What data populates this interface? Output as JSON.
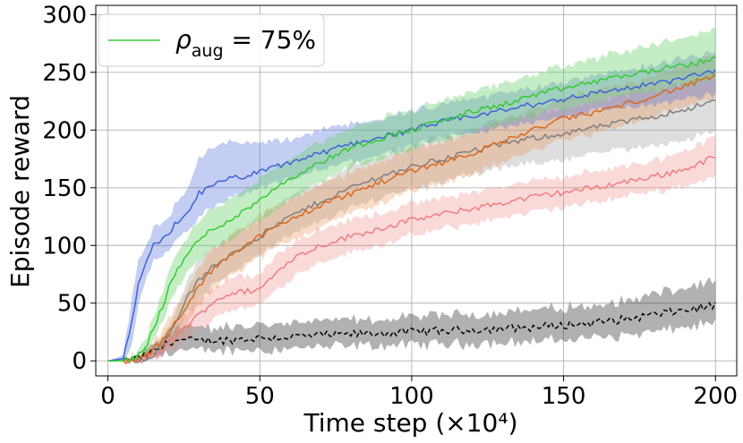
{
  "chart_data": {
    "type": "line",
    "title": "",
    "xlabel": "Time step (×10⁴)",
    "ylabel": "Episode reward",
    "xlim": [
      -4,
      207
    ],
    "ylim": [
      -13,
      308
    ],
    "xticks": [
      0,
      50,
      100,
      150,
      200
    ],
    "yticks": [
      0,
      50,
      100,
      150,
      200,
      250,
      300
    ],
    "x_tick_labels": [
      "0",
      "50",
      "100",
      "150",
      "200"
    ],
    "y_tick_labels": [
      "0",
      "50",
      "100",
      "150",
      "200",
      "250",
      "300"
    ],
    "grid": true,
    "legend_position": "top-left",
    "legend": {
      "symbol": "ρ",
      "subscript": "aug",
      "text": " = 75%",
      "color": "#33cc33"
    },
    "x": [
      0,
      5,
      8,
      10,
      12,
      15,
      18,
      20,
      22,
      25,
      30,
      35,
      40,
      45,
      50,
      55,
      60,
      70,
      80,
      90,
      100,
      110,
      120,
      130,
      140,
      150,
      160,
      170,
      180,
      190,
      200
    ],
    "series": [
      {
        "name": "blue",
        "color": "#3d63d8",
        "fill": "rgba(87,115,222,0.35)",
        "dashed": false,
        "mean": [
          0,
          2,
          35,
          65,
          80,
          100,
          105,
          110,
          118,
          125,
          145,
          152,
          158,
          160,
          163,
          168,
          172,
          180,
          188,
          194,
          200,
          207,
          212,
          217,
          222,
          227,
          232,
          236,
          240,
          245,
          252
        ],
        "lower": [
          0,
          0,
          15,
          45,
          65,
          85,
          90,
          95,
          103,
          110,
          125,
          132,
          140,
          145,
          148,
          153,
          157,
          165,
          173,
          179,
          185,
          192,
          197,
          202,
          207,
          212,
          216,
          220,
          222,
          226,
          232
        ],
        "upper": [
          0,
          5,
          55,
          85,
          95,
          115,
          120,
          125,
          135,
          145,
          175,
          185,
          190,
          190,
          188,
          190,
          192,
          200,
          205,
          210,
          216,
          222,
          227,
          232,
          237,
          242,
          247,
          252,
          256,
          262,
          268
        ]
      },
      {
        "name": "green",
        "color": "#33cc33",
        "fill": "rgba(110,210,110,0.4)",
        "dashed": false,
        "mean": [
          0,
          0,
          2,
          5,
          10,
          28,
          48,
          62,
          75,
          88,
          105,
          115,
          122,
          130,
          140,
          150,
          158,
          172,
          185,
          193,
          200,
          208,
          216,
          222,
          230,
          236,
          242,
          247,
          252,
          256,
          262
        ],
        "lower": [
          0,
          0,
          0,
          2,
          5,
          18,
          35,
          48,
          60,
          72,
          88,
          98,
          105,
          113,
          122,
          132,
          140,
          155,
          168,
          176,
          183,
          191,
          199,
          205,
          212,
          218,
          224,
          230,
          234,
          238,
          244
        ],
        "upper": [
          0,
          1,
          5,
          10,
          16,
          40,
          62,
          76,
          90,
          102,
          122,
          132,
          140,
          148,
          158,
          168,
          176,
          190,
          202,
          210,
          217,
          225,
          233,
          240,
          248,
          255,
          262,
          268,
          274,
          280,
          288
        ]
      },
      {
        "name": "orange",
        "color": "#d9691f",
        "fill": "rgba(236,140,70,0.3)",
        "dashed": false,
        "mean": [
          0,
          0,
          0,
          1,
          3,
          10,
          18,
          25,
          32,
          42,
          65,
          80,
          92,
          100,
          108,
          115,
          122,
          135,
          145,
          155,
          165,
          172,
          180,
          190,
          200,
          210,
          215,
          222,
          230,
          238,
          247
        ],
        "lower": [
          0,
          0,
          0,
          0,
          1,
          5,
          10,
          15,
          20,
          28,
          48,
          62,
          74,
          82,
          90,
          97,
          104,
          117,
          127,
          137,
          147,
          154,
          162,
          172,
          182,
          192,
          197,
          204,
          212,
          220,
          228
        ],
        "upper": [
          0,
          0,
          1,
          3,
          6,
          16,
          26,
          36,
          45,
          56,
          82,
          98,
          110,
          118,
          126,
          133,
          140,
          153,
          163,
          173,
          183,
          190,
          198,
          208,
          218,
          228,
          233,
          240,
          248,
          256,
          265
        ]
      },
      {
        "name": "salmon",
        "color": "#ee7f7f",
        "fill": "rgba(240,130,130,0.3)",
        "dashed": false,
        "mean": [
          0,
          0,
          0,
          0,
          1,
          4,
          10,
          15,
          20,
          28,
          40,
          52,
          58,
          60,
          62,
          75,
          88,
          100,
          108,
          115,
          122,
          127,
          132,
          137,
          142,
          146,
          150,
          155,
          160,
          166,
          177
        ],
        "lower": [
          0,
          0,
          0,
          0,
          0,
          1,
          4,
          8,
          12,
          18,
          28,
          38,
          44,
          46,
          48,
          60,
          72,
          86,
          94,
          101,
          108,
          114,
          119,
          124,
          129,
          133,
          137,
          142,
          147,
          152,
          160
        ],
        "upper": [
          0,
          0,
          0,
          1,
          3,
          8,
          16,
          22,
          28,
          38,
          52,
          65,
          72,
          74,
          76,
          90,
          102,
          114,
          122,
          129,
          136,
          141,
          146,
          151,
          156,
          160,
          164,
          169,
          174,
          182,
          194
        ]
      },
      {
        "name": "gray",
        "color": "#7f7f7f",
        "fill": "rgba(160,160,160,0.35)",
        "dashed": false,
        "mean": [
          0,
          0,
          0,
          1,
          2,
          6,
          14,
          22,
          32,
          50,
          70,
          82,
          92,
          100,
          108,
          117,
          125,
          138,
          150,
          160,
          168,
          175,
          182,
          188,
          193,
          197,
          202,
          207,
          212,
          218,
          225
        ],
        "lower": [
          0,
          0,
          0,
          0,
          1,
          3,
          8,
          14,
          22,
          36,
          54,
          66,
          76,
          84,
          92,
          101,
          108,
          121,
          132,
          142,
          150,
          156,
          162,
          167,
          171,
          175,
          179,
          183,
          187,
          192,
          198
        ],
        "upper": [
          0,
          0,
          1,
          2,
          4,
          10,
          20,
          30,
          42,
          64,
          86,
          98,
          108,
          116,
          124,
          133,
          142,
          155,
          168,
          178,
          186,
          194,
          202,
          208,
          214,
          219,
          224,
          230,
          236,
          242,
          250
        ]
      },
      {
        "name": "black-dashed",
        "color": "#000000",
        "fill": "rgba(60,60,60,0.4)",
        "dashed": true,
        "mean": [
          0,
          0,
          1,
          2,
          4,
          8,
          12,
          16,
          18,
          18,
          17,
          18,
          18,
          19,
          20,
          20,
          21,
          22,
          23,
          24,
          25,
          26,
          27,
          28,
          29,
          31,
          33,
          36,
          40,
          44,
          48
        ],
        "lower": [
          0,
          0,
          0,
          0,
          1,
          3,
          5,
          8,
          9,
          9,
          8,
          9,
          9,
          10,
          10,
          10,
          11,
          12,
          13,
          13,
          14,
          15,
          15,
          16,
          17,
          18,
          20,
          22,
          25,
          29,
          33
        ],
        "upper": [
          0,
          0,
          2,
          4,
          8,
          14,
          20,
          25,
          28,
          30,
          29,
          29,
          29,
          30,
          31,
          32,
          33,
          34,
          35,
          36,
          38,
          39,
          41,
          42,
          44,
          46,
          48,
          52,
          58,
          63,
          68
        ]
      }
    ]
  }
}
